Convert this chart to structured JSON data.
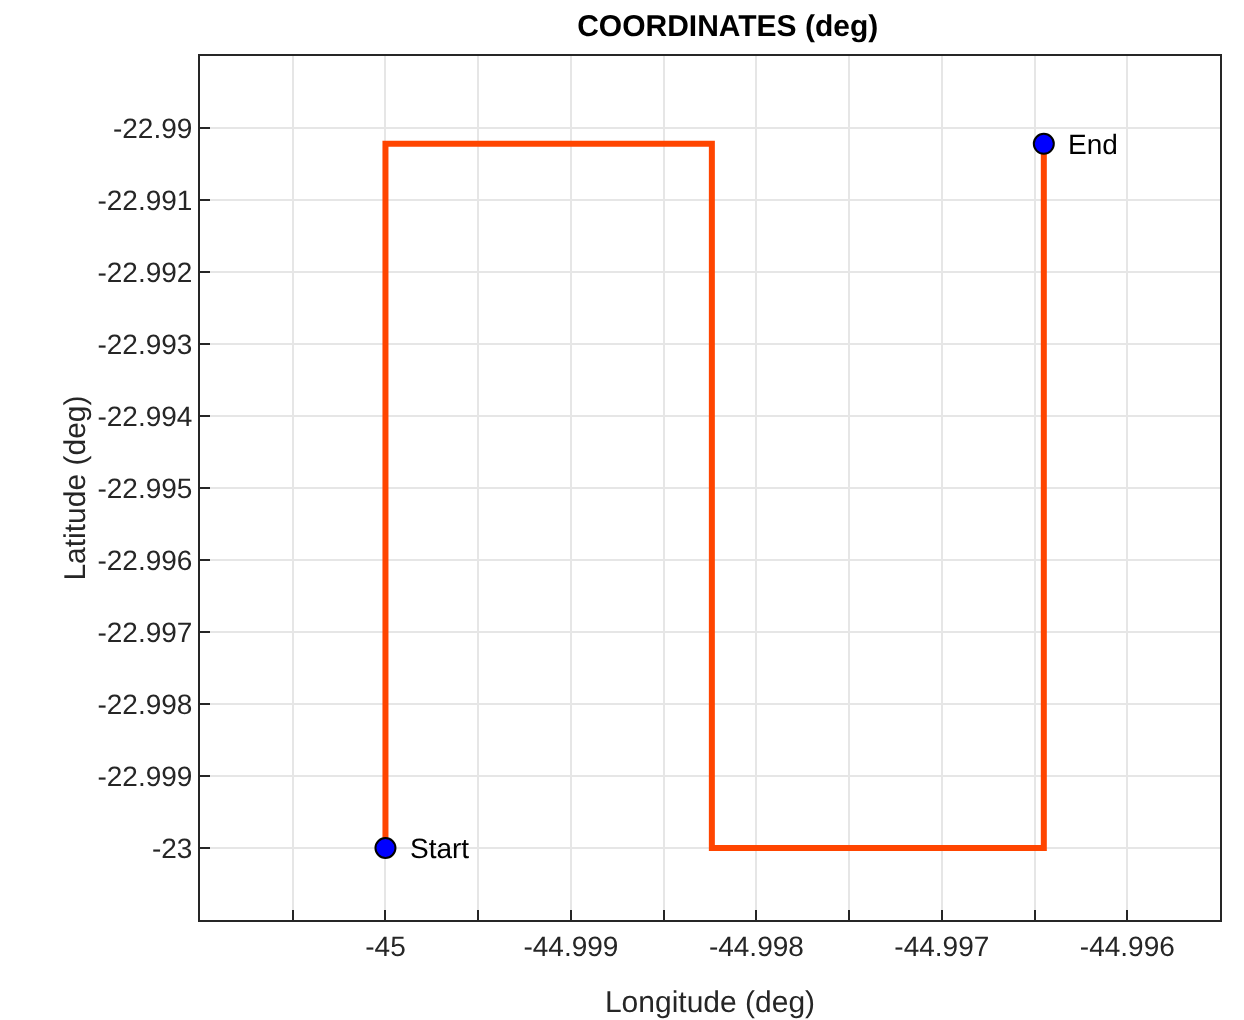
{
  "chart_data": {
    "type": "line",
    "title": "COORDINATES (deg)",
    "xlabel": "Longitude (deg)",
    "ylabel": "Latitude (deg)",
    "series": [
      {
        "color": "#ff4500",
        "x": [
          -45,
          -45,
          -44.99824,
          -44.99824,
          -44.99645,
          -44.99645
        ],
        "values": [
          -23,
          -22.99022,
          -22.99022,
          -23,
          -23,
          -22.99022
        ],
        "marker": "none",
        "line_style": "solid"
      },
      {
        "type": "scatter",
        "color": "#0000ff",
        "x": [
          -45,
          -44.99645
        ],
        "values": [
          -23,
          -22.99022
        ],
        "marker": "circle"
      }
    ],
    "annotations": [
      {
        "text": "Start",
        "x": -45,
        "y": -23
      },
      {
        "text": "End",
        "x": -44.99645,
        "y": -22.99022
      }
    ],
    "xlim": [
      -45.001,
      -44.9955
    ],
    "xticks": [
      {
        "value": -45.0005,
        "label": null
      },
      {
        "value": -45,
        "label": "-45"
      },
      {
        "value": -44.9995,
        "label": null
      },
      -44.999,
      {
        "value": -44.9985,
        "label": null
      },
      -44.998,
      {
        "value": -44.9975,
        "label": null
      },
      -44.997,
      {
        "value": -44.9965,
        "label": null
      },
      -44.996
    ],
    "ylim": [
      -23.001,
      -22.989
    ],
    "yticks": [
      -23,
      -22.999,
      -22.998,
      -22.997,
      -22.996,
      -22.995,
      -22.994,
      -22.993,
      -22.992,
      -22.991,
      -22.99
    ],
    "grid": true
  }
}
